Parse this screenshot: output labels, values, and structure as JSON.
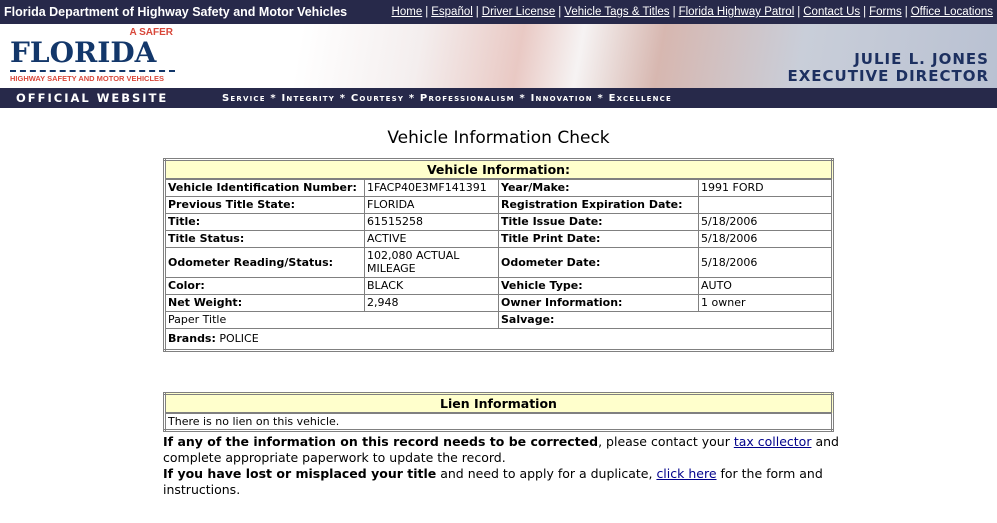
{
  "topbar": {
    "title": "Florida Department of Highway Safety and Motor Vehicles",
    "links": [
      "Home",
      "Español",
      "Driver License",
      "Vehicle Tags & Titles",
      "Florida Highway Patrol",
      "Contact Us",
      "Forms",
      "Office Locations"
    ]
  },
  "banner": {
    "logo_safer": "A SAFER",
    "logo_main": "FLORIDA",
    "logo_sub": "HIGHWAY SAFETY AND MOTOR VEHICLES",
    "director_name": "JULIE L. JONES",
    "director_title": "EXECUTIVE DIRECTOR"
  },
  "navbar": {
    "official": "OFFICIAL WEBSITE",
    "motto": "Service * Integrity * Courtesy * Professionalism * Innovation * Excellence"
  },
  "page_title": "Vehicle Information Check",
  "vehicle": {
    "header": "Vehicle Information:",
    "rows": [
      [
        "Vehicle Identification Number:",
        "1FACP40E3MF141391",
        "Year/Make:",
        "1991 FORD"
      ],
      [
        "Previous Title State:",
        "FLORIDA",
        "Registration Expiration Date:",
        ""
      ],
      [
        "Title:",
        "61515258",
        "Title Issue Date:",
        "5/18/2006"
      ],
      [
        "Title Status:",
        "ACTIVE",
        "Title Print Date:",
        "5/18/2006"
      ],
      [
        "Odometer Reading/Status:",
        "102,080 ACTUAL MILEAGE",
        "Odometer Date:",
        "5/18/2006"
      ],
      [
        "Color:",
        "BLACK",
        "Vehicle Type:",
        "AUTO"
      ],
      [
        "Net Weight:",
        "2,948",
        "Owner Information:",
        "1 owner"
      ]
    ],
    "paper_title": "Paper Title",
    "salvage_label": "Salvage:",
    "brands_label": "Brands:",
    "brands_value": "POLICE"
  },
  "lien": {
    "header": "Lien Information",
    "text": "There is no lien on this vehicle."
  },
  "notes": {
    "p1_bold": "If any of the information on this record needs to be corrected",
    "p1_text": ", please contact your ",
    "p1_link": "tax collector",
    "p1_end": " and complete appropriate paperwork to update the record.",
    "p2_bold": "If you have lost or misplaced your title",
    "p2_text": " and need to apply for a duplicate, ",
    "p2_link": "click here",
    "p2_end": " for the form and instructions."
  }
}
